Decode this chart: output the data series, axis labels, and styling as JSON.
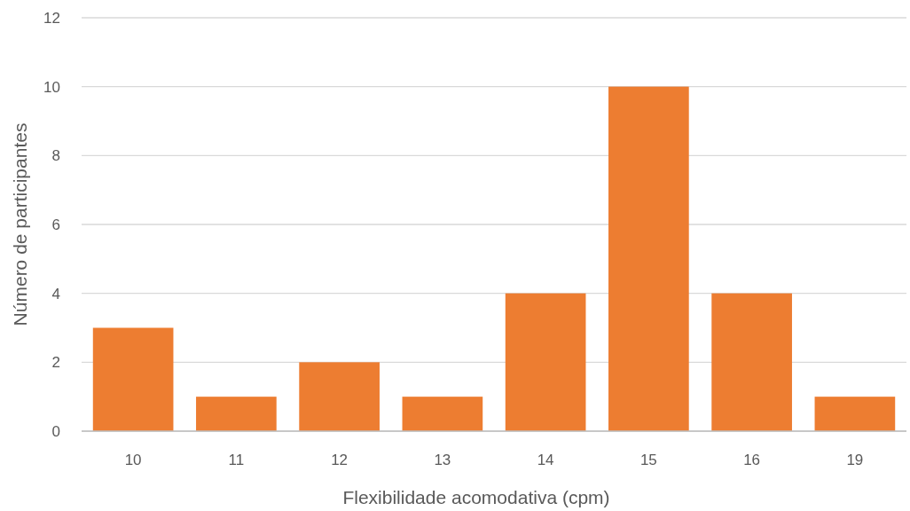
{
  "chart_data": {
    "type": "bar",
    "xlabel": "Flexibilidade acomodativa (cpm)",
    "ylabel": "Número de participantes",
    "categories": [
      "10",
      "11",
      "12",
      "13",
      "14",
      "15",
      "16",
      "19"
    ],
    "values": [
      3,
      1,
      2,
      1,
      4,
      10,
      4,
      1
    ],
    "color": "#ed7d31",
    "ylim": [
      0,
      12
    ],
    "yticks": [
      0,
      2,
      4,
      6,
      8,
      10,
      12
    ],
    "grid": "y"
  }
}
